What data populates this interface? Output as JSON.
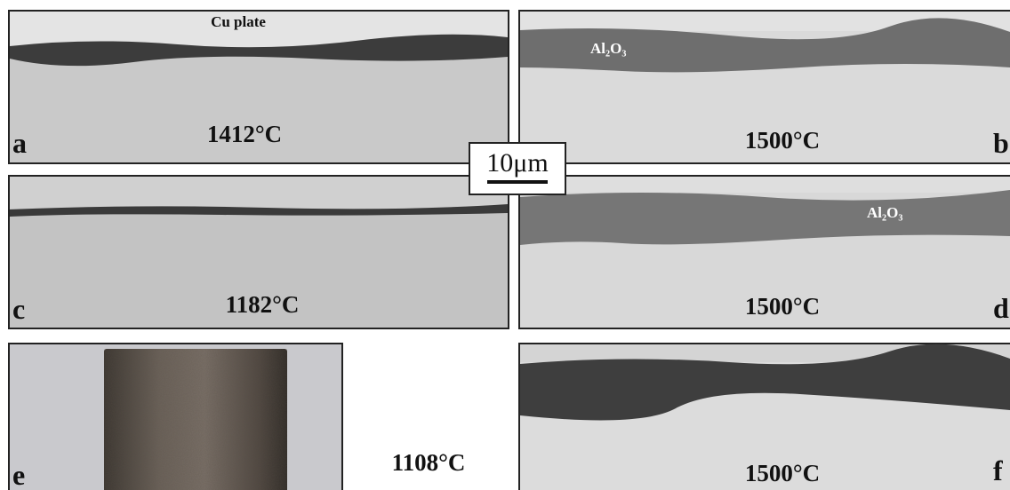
{
  "panels": [
    {
      "letter": "a",
      "temperature": "1412°C",
      "annotation": "Cu plate"
    },
    {
      "letter": "b",
      "temperature": "1500°C",
      "annotation": "Al₂O₃"
    },
    {
      "letter": "c",
      "temperature": "1182°C"
    },
    {
      "letter": "d",
      "temperature": "1500°C",
      "annotation": "Al₂O₃"
    },
    {
      "letter": "e",
      "temperature": "1108°C"
    },
    {
      "letter": "f",
      "temperature": "1500°C"
    }
  ],
  "scale_bar": "10μm"
}
